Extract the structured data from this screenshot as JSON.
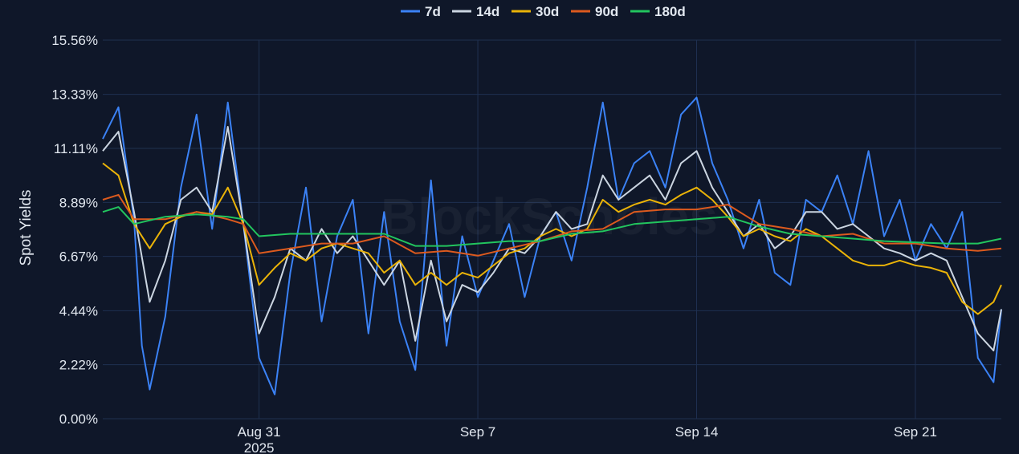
{
  "chart_data": {
    "type": "line",
    "title": "",
    "ylabel": "Spot Yields",
    "xlabel": "",
    "watermark": "BlockScholes",
    "legend_position": "top-center",
    "grid": true,
    "ylim": [
      0,
      15.56
    ],
    "y_ticks": [
      {
        "value": 0.0,
        "label": "0.00%"
      },
      {
        "value": 2.22,
        "label": "2.22%"
      },
      {
        "value": 4.44,
        "label": "4.44%"
      },
      {
        "value": 6.67,
        "label": "6.67%"
      },
      {
        "value": 8.89,
        "label": "8.89%"
      },
      {
        "value": 11.11,
        "label": "11.11%"
      },
      {
        "value": 13.33,
        "label": "13.33%"
      },
      {
        "value": 15.56,
        "label": "15.56%"
      }
    ],
    "xlim": [
      "2025-08-26T00:00",
      "2025-09-23T18:00"
    ],
    "x_ticks": [
      {
        "value": "2025-08-31",
        "label": "Aug 31",
        "sublabel": "2025"
      },
      {
        "value": "2025-09-07",
        "label": "Sep 7",
        "sublabel": ""
      },
      {
        "value": "2025-09-14",
        "label": "Sep 14",
        "sublabel": ""
      },
      {
        "value": "2025-09-21",
        "label": "Sep 21",
        "sublabel": ""
      }
    ],
    "series": [
      {
        "name": "7d",
        "color": "#3b82f6",
        "x": [
          "2025-08-26",
          "2025-08-26T12:00",
          "2025-08-27",
          "2025-08-27T06:00",
          "2025-08-27T12:00",
          "2025-08-28",
          "2025-08-28T12:00",
          "2025-08-29",
          "2025-08-29T12:00",
          "2025-08-30",
          "2025-08-30T12:00",
          "2025-08-31",
          "2025-08-31T12:00",
          "2025-09-01",
          "2025-09-01T12:00",
          "2025-09-02",
          "2025-09-02T12:00",
          "2025-09-03",
          "2025-09-03T12:00",
          "2025-09-04",
          "2025-09-04T12:00",
          "2025-09-05",
          "2025-09-05T12:00",
          "2025-09-06",
          "2025-09-06T12:00",
          "2025-09-07",
          "2025-09-07T12:00",
          "2025-09-08",
          "2025-09-08T12:00",
          "2025-09-09",
          "2025-09-09T12:00",
          "2025-09-10",
          "2025-09-10T12:00",
          "2025-09-11",
          "2025-09-11T12:00",
          "2025-09-12",
          "2025-09-12T12:00",
          "2025-09-13",
          "2025-09-13T12:00",
          "2025-09-14",
          "2025-09-14T12:00",
          "2025-09-15",
          "2025-09-15T12:00",
          "2025-09-16",
          "2025-09-16T12:00",
          "2025-09-17",
          "2025-09-17T12:00",
          "2025-09-18",
          "2025-09-18T12:00",
          "2025-09-19",
          "2025-09-19T12:00",
          "2025-09-20",
          "2025-09-20T12:00",
          "2025-09-21",
          "2025-09-21T12:00",
          "2025-09-22",
          "2025-09-22T12:00",
          "2025-09-23",
          "2025-09-23T12:00",
          "2025-09-23T18:00"
        ],
        "values": [
          11.5,
          12.8,
          8.2,
          3.0,
          1.2,
          4.2,
          9.5,
          12.5,
          7.8,
          13.0,
          8.0,
          2.5,
          1.0,
          6.0,
          9.5,
          4.0,
          7.5,
          9.0,
          3.5,
          8.5,
          4.0,
          2.0,
          9.8,
          3.0,
          7.5,
          5.0,
          6.5,
          8.0,
          5.0,
          7.5,
          8.5,
          6.5,
          9.5,
          13.0,
          9.0,
          10.5,
          11.0,
          9.5,
          12.5,
          13.2,
          10.5,
          9.0,
          7.0,
          9.0,
          6.0,
          5.5,
          9.0,
          8.5,
          10.0,
          8.0,
          11.0,
          7.5,
          9.0,
          6.5,
          8.0,
          7.0,
          8.5,
          2.5,
          1.5,
          4.5
        ]
      },
      {
        "name": "14d",
        "color": "#cbd5e1",
        "x": [
          "2025-08-26",
          "2025-08-26T12:00",
          "2025-08-27",
          "2025-08-27T12:00",
          "2025-08-28",
          "2025-08-28T12:00",
          "2025-08-29",
          "2025-08-29T12:00",
          "2025-08-30",
          "2025-08-30T12:00",
          "2025-08-31",
          "2025-08-31T12:00",
          "2025-09-01",
          "2025-09-01T12:00",
          "2025-09-02",
          "2025-09-02T12:00",
          "2025-09-03",
          "2025-09-03T12:00",
          "2025-09-04",
          "2025-09-04T12:00",
          "2025-09-05",
          "2025-09-05T12:00",
          "2025-09-06",
          "2025-09-06T12:00",
          "2025-09-07",
          "2025-09-07T12:00",
          "2025-09-08",
          "2025-09-08T12:00",
          "2025-09-09",
          "2025-09-09T12:00",
          "2025-09-10",
          "2025-09-10T12:00",
          "2025-09-11",
          "2025-09-11T12:00",
          "2025-09-12",
          "2025-09-12T12:00",
          "2025-09-13",
          "2025-09-13T12:00",
          "2025-09-14",
          "2025-09-14T12:00",
          "2025-09-15",
          "2025-09-15T12:00",
          "2025-09-16",
          "2025-09-16T12:00",
          "2025-09-17",
          "2025-09-17T12:00",
          "2025-09-18",
          "2025-09-18T12:00",
          "2025-09-19",
          "2025-09-19T12:00",
          "2025-09-20",
          "2025-09-20T12:00",
          "2025-09-21",
          "2025-09-21T12:00",
          "2025-09-22",
          "2025-09-22T12:00",
          "2025-09-23",
          "2025-09-23T12:00",
          "2025-09-23T18:00"
        ],
        "values": [
          11.0,
          11.8,
          8.5,
          4.8,
          6.5,
          9.0,
          9.5,
          8.5,
          12.0,
          8.0,
          3.5,
          5.0,
          7.0,
          6.5,
          7.8,
          6.8,
          7.5,
          6.5,
          5.5,
          6.5,
          3.2,
          6.5,
          4.0,
          5.5,
          5.2,
          6.0,
          7.0,
          6.8,
          7.5,
          8.5,
          7.8,
          8.0,
          10.0,
          9.0,
          9.5,
          10.0,
          9.0,
          10.5,
          11.0,
          9.5,
          8.5,
          7.5,
          8.0,
          7.0,
          7.5,
          8.5,
          8.5,
          7.8,
          8.0,
          7.5,
          7.0,
          6.8,
          6.5,
          6.8,
          6.5,
          5.0,
          3.5,
          2.8,
          4.5
        ]
      },
      {
        "name": "30d",
        "color": "#eab308",
        "x": [
          "2025-08-26",
          "2025-08-26T12:00",
          "2025-08-27",
          "2025-08-27T12:00",
          "2025-08-28",
          "2025-08-28T12:00",
          "2025-08-29",
          "2025-08-29T12:00",
          "2025-08-30",
          "2025-08-30T12:00",
          "2025-08-31",
          "2025-08-31T12:00",
          "2025-09-01",
          "2025-09-01T12:00",
          "2025-09-02",
          "2025-09-02T12:00",
          "2025-09-03",
          "2025-09-03T12:00",
          "2025-09-04",
          "2025-09-04T12:00",
          "2025-09-05",
          "2025-09-05T12:00",
          "2025-09-06",
          "2025-09-06T12:00",
          "2025-09-07",
          "2025-09-07T12:00",
          "2025-09-08",
          "2025-09-08T12:00",
          "2025-09-09",
          "2025-09-09T12:00",
          "2025-09-10",
          "2025-09-10T12:00",
          "2025-09-11",
          "2025-09-11T12:00",
          "2025-09-12",
          "2025-09-12T12:00",
          "2025-09-13",
          "2025-09-13T12:00",
          "2025-09-14",
          "2025-09-14T12:00",
          "2025-09-15",
          "2025-09-15T12:00",
          "2025-09-16",
          "2025-09-16T12:00",
          "2025-09-17",
          "2025-09-17T12:00",
          "2025-09-18",
          "2025-09-18T12:00",
          "2025-09-19",
          "2025-09-19T12:00",
          "2025-09-20",
          "2025-09-20T12:00",
          "2025-09-21",
          "2025-09-21T12:00",
          "2025-09-22",
          "2025-09-22T12:00",
          "2025-09-23",
          "2025-09-23T12:00",
          "2025-09-23T18:00"
        ],
        "values": [
          10.5,
          10.0,
          8.0,
          7.0,
          8.0,
          8.3,
          8.5,
          8.4,
          9.5,
          8.0,
          5.5,
          6.2,
          6.8,
          6.5,
          7.0,
          7.2,
          7.0,
          6.8,
          6.0,
          6.5,
          5.5,
          6.0,
          5.5,
          6.0,
          5.8,
          6.3,
          6.8,
          7.0,
          7.5,
          7.8,
          7.5,
          7.8,
          9.0,
          8.5,
          8.8,
          9.0,
          8.8,
          9.2,
          9.5,
          9.0,
          8.3,
          7.5,
          7.8,
          7.5,
          7.3,
          7.8,
          7.5,
          7.0,
          6.5,
          6.3,
          6.3,
          6.5,
          6.3,
          6.2,
          6.0,
          4.8,
          4.3,
          4.8,
          5.5
        ]
      },
      {
        "name": "90d",
        "color": "#dc5a1e",
        "x": [
          "2025-08-26",
          "2025-08-26T12:00",
          "2025-08-27",
          "2025-08-28",
          "2025-08-29",
          "2025-08-30",
          "2025-08-30T12:00",
          "2025-08-31",
          "2025-09-01",
          "2025-09-02",
          "2025-09-03",
          "2025-09-04",
          "2025-09-05",
          "2025-09-06",
          "2025-09-07",
          "2025-09-08",
          "2025-09-09",
          "2025-09-10",
          "2025-09-11",
          "2025-09-12",
          "2025-09-13",
          "2025-09-14",
          "2025-09-15",
          "2025-09-16",
          "2025-09-17",
          "2025-09-18",
          "2025-09-19",
          "2025-09-20",
          "2025-09-21",
          "2025-09-22",
          "2025-09-23",
          "2025-09-23T18:00"
        ],
        "values": [
          9.0,
          9.2,
          8.2,
          8.2,
          8.5,
          8.2,
          8.0,
          6.8,
          7.0,
          7.2,
          7.2,
          7.5,
          6.8,
          6.9,
          6.7,
          7.0,
          7.3,
          7.7,
          7.8,
          8.5,
          8.6,
          8.6,
          8.8,
          8.0,
          7.8,
          7.5,
          7.6,
          7.2,
          7.2,
          7.0,
          6.9,
          7.0
        ]
      },
      {
        "name": "180d",
        "color": "#22c55e",
        "x": [
          "2025-08-26",
          "2025-08-26T12:00",
          "2025-08-27",
          "2025-08-28",
          "2025-08-29",
          "2025-08-30",
          "2025-08-30T12:00",
          "2025-08-31",
          "2025-09-01",
          "2025-09-02",
          "2025-09-03",
          "2025-09-04",
          "2025-09-05",
          "2025-09-06",
          "2025-09-07",
          "2025-09-08",
          "2025-09-09",
          "2025-09-10",
          "2025-09-11",
          "2025-09-12",
          "2025-09-13",
          "2025-09-14",
          "2025-09-15",
          "2025-09-16",
          "2025-09-17",
          "2025-09-18",
          "2025-09-19",
          "2025-09-20",
          "2025-09-21",
          "2025-09-22",
          "2025-09-23",
          "2025-09-23T18:00"
        ],
        "values": [
          8.5,
          8.7,
          8.0,
          8.3,
          8.4,
          8.3,
          8.2,
          7.5,
          7.6,
          7.6,
          7.6,
          7.6,
          7.1,
          7.1,
          7.2,
          7.3,
          7.3,
          7.6,
          7.7,
          8.0,
          8.1,
          8.2,
          8.3,
          7.9,
          7.6,
          7.5,
          7.4,
          7.3,
          7.25,
          7.2,
          7.2,
          7.4
        ]
      }
    ]
  }
}
